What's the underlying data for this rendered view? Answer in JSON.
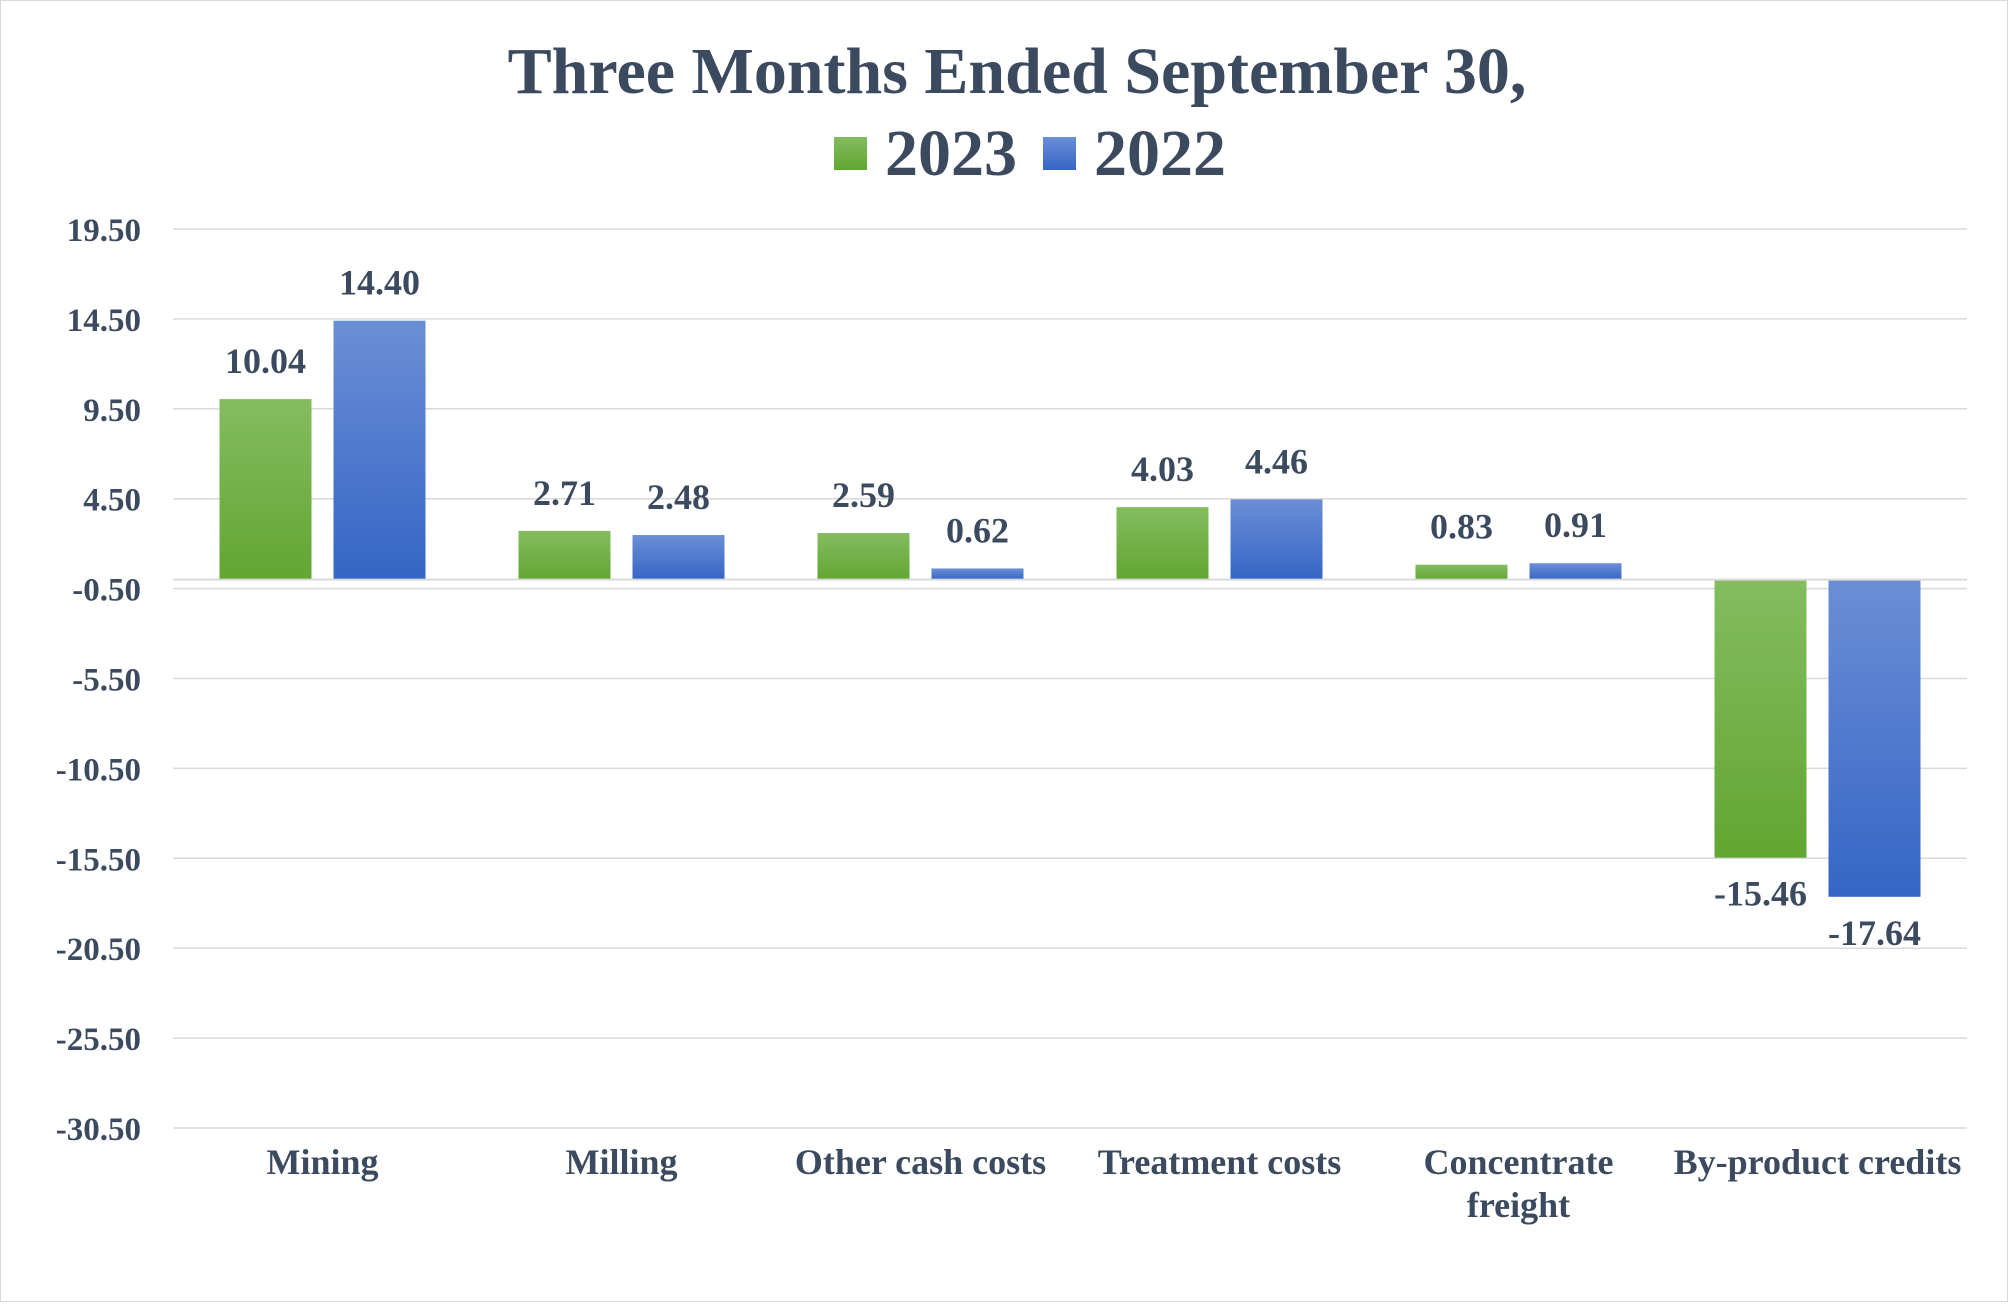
{
  "chart_data": {
    "type": "bar",
    "title": "Three Months Ended September 30,",
    "categories": [
      "Mining",
      "Milling",
      "Other cash costs",
      "Treatment costs",
      "Concentrate freight",
      "By-product credits"
    ],
    "series": [
      {
        "name": "2023",
        "values": [
          10.04,
          2.71,
          2.59,
          4.03,
          0.83,
          -15.46
        ],
        "color": "#70ad47"
      },
      {
        "name": "2022",
        "values": [
          14.4,
          2.48,
          0.62,
          4.46,
          0.91,
          -17.64
        ],
        "color": "#4472c4"
      }
    ],
    "value_labels": {
      "2023": [
        "10.04",
        "2.71",
        "2.59",
        "4.03",
        "0.83",
        "-15.46"
      ],
      "2022": [
        "14.40",
        "2.48",
        "0.62",
        "4.46",
        "0.91",
        "-17.64"
      ]
    },
    "yticks": [
      "19.50",
      "14.50",
      "9.50",
      "4.50",
      "-0.50",
      "-5.50",
      "-10.50",
      "-15.50",
      "-20.50",
      "-25.50",
      "-30.50"
    ],
    "ylim": [
      -30.5,
      19.5
    ],
    "grid": true,
    "legend_position": "top"
  }
}
